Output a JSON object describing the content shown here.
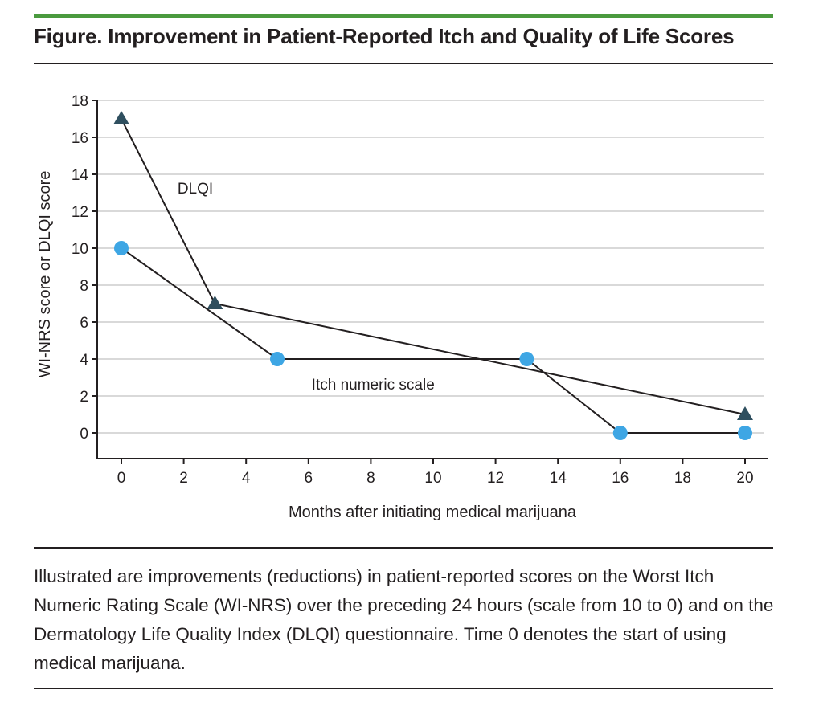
{
  "figure": {
    "title": "Figure. Improvement in Patient-Reported Itch and Quality of Life Scores",
    "caption": "Illustrated are improvements (reductions) in patient-reported scores on the Worst Itch Numeric Rating Scale (WI-NRS) over the preceding 24 hours (scale from 10 to 0) and on the Dermatology Life Quality Index (DLQI) questionnaire. Time 0 denotes the start of using medical marijuana."
  },
  "colors": {
    "accent_rule": "#4a9a3e",
    "gridline": "#d9d9d9",
    "dlqi_marker": "#2f4f5f",
    "itch_marker": "#3ea6e4",
    "line": "#231f20"
  },
  "chart_data": {
    "type": "line",
    "xlabel": "Months after initiating medical marijuana",
    "ylabel": "WI-NRS score or DLQI score",
    "xlim": [
      0,
      20
    ],
    "ylim": [
      0,
      18
    ],
    "xticks": [
      0,
      2,
      4,
      6,
      8,
      10,
      12,
      14,
      16,
      18,
      20
    ],
    "yticks": [
      0,
      2,
      4,
      6,
      8,
      10,
      12,
      14,
      16,
      18
    ],
    "grid": "horizontal",
    "series": [
      {
        "name": "DLQI",
        "marker": "triangle",
        "color": "#2f4f5f",
        "points": [
          {
            "x": 0,
            "y": 17
          },
          {
            "x": 3,
            "y": 7
          },
          {
            "x": 20,
            "y": 1
          }
        ]
      },
      {
        "name": "Itch numeric scale",
        "marker": "circle",
        "color": "#3ea6e4",
        "points": [
          {
            "x": 0,
            "y": 10
          },
          {
            "x": 5,
            "y": 4
          },
          {
            "x": 13,
            "y": 4
          },
          {
            "x": 16,
            "y": 0
          },
          {
            "x": 20,
            "y": 0
          }
        ]
      }
    ]
  }
}
